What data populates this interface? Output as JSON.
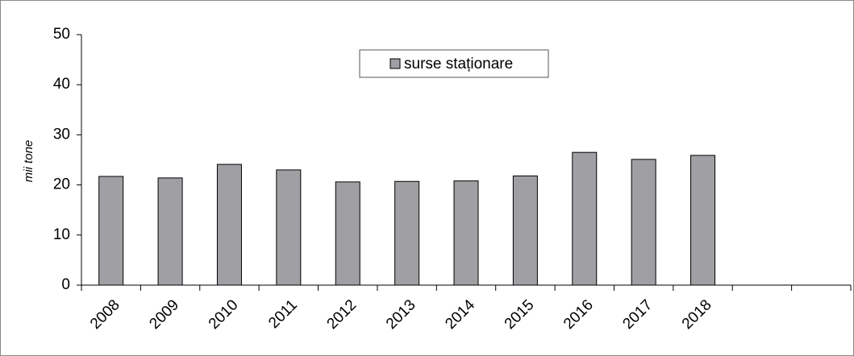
{
  "chart_data": {
    "type": "bar",
    "y_label": "mii tone",
    "categories": [
      "2008",
      "2009",
      "2010",
      "2011",
      "2012",
      "2013",
      "2014",
      "2015",
      "2016",
      "2017",
      "2018",
      null,
      null
    ],
    "series": [
      {
        "name": "surse staționare",
        "color": "#a0a0a4",
        "values": [
          21.7,
          21.4,
          24.1,
          23.0,
          20.6,
          20.7,
          20.8,
          21.8,
          26.5,
          25.1,
          25.9,
          null,
          null
        ]
      }
    ],
    "ylim": [
      0,
      50
    ],
    "yticks": [
      0,
      10,
      20,
      30,
      40,
      50
    ],
    "grid": false,
    "legend": "top"
  }
}
